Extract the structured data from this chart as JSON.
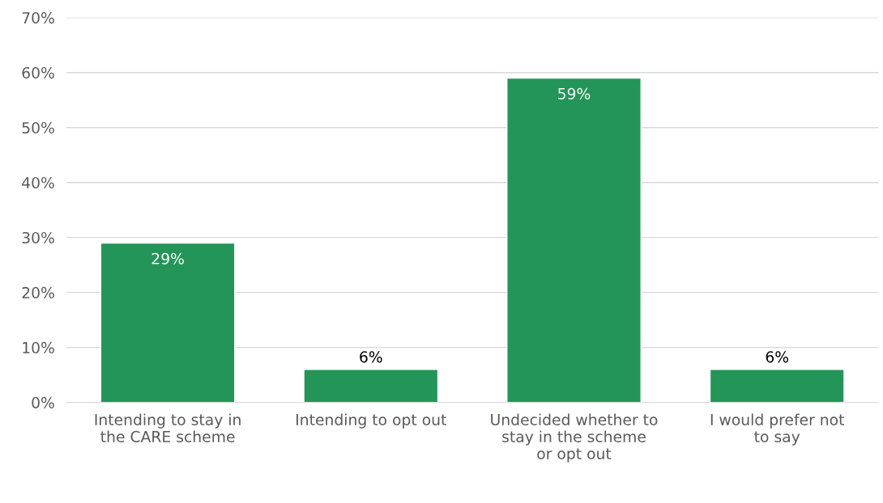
{
  "chart_data": {
    "type": "bar",
    "categories": [
      "Intending to stay in the CARE scheme",
      "Intending to opt out",
      "Undecided whether to stay in the scheme or opt out",
      "I would prefer not to say"
    ],
    "values": [
      29,
      6,
      59,
      6
    ],
    "value_labels": [
      "29%",
      "6%",
      "59%",
      "6%"
    ],
    "color": "#239558",
    "ylim": [
      0,
      70
    ],
    "yticks": [
      {
        "value": 0,
        "label": "0%"
      },
      {
        "value": 10,
        "label": "10%"
      },
      {
        "value": 20,
        "label": "20%"
      },
      {
        "value": 30,
        "label": "30%"
      },
      {
        "value": 40,
        "label": "40%"
      },
      {
        "value": 50,
        "label": "50%"
      },
      {
        "value": 60,
        "label": "60%"
      },
      {
        "value": 70,
        "label": "70%"
      }
    ],
    "grid": "y",
    "legend": false
  }
}
